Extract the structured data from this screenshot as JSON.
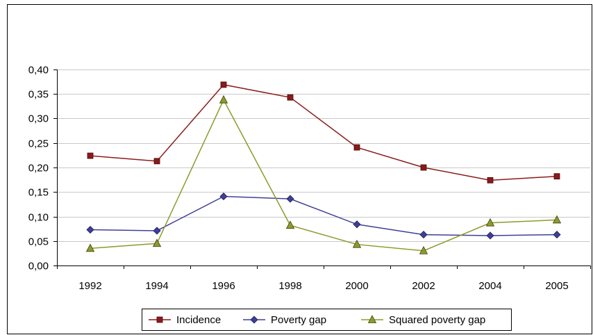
{
  "chart_data": {
    "type": "line",
    "categories": [
      "1992",
      "1994",
      "1996",
      "1998",
      "2000",
      "2002",
      "2004",
      "2005"
    ],
    "ylim": [
      0,
      0.4
    ],
    "yticks": [
      "0,00",
      "0,05",
      "0,10",
      "0,15",
      "0,20",
      "0,25",
      "0,30",
      "0,35",
      "0,40"
    ],
    "grid": true,
    "legend_position": "bottom",
    "series": [
      {
        "name": "Incidence",
        "color": "#8B1A1A",
        "marker": "square",
        "values": [
          0.224,
          0.213,
          0.369,
          0.343,
          0.241,
          0.2,
          0.174,
          0.182
        ]
      },
      {
        "name": "Poverty gap",
        "color": "#3F3F96",
        "marker": "diamond",
        "values": [
          0.073,
          0.071,
          0.141,
          0.136,
          0.084,
          0.063,
          0.061,
          0.063
        ]
      },
      {
        "name": "Squared poverty gap",
        "color": "#8E9A2B",
        "marker": "triangle",
        "values": [
          0.035,
          0.045,
          0.338,
          0.082,
          0.043,
          0.03,
          0.087,
          0.093
        ]
      }
    ]
  }
}
